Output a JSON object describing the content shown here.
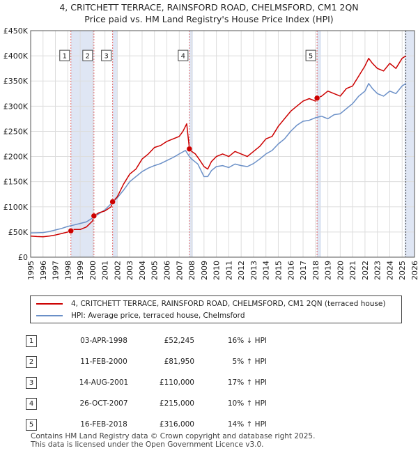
{
  "title": {
    "line1": "4, CRITCHETT TERRACE, RAINSFORD ROAD, CHELMSFORD, CM1 2QN",
    "line2": "Price paid vs. HM Land Registry's House Price Index (HPI)"
  },
  "colors": {
    "property": "#cc0000",
    "hpi": "#6a8fc7",
    "shade": "#dfe6f4",
    "marker_line": "#e06666",
    "grid": "#dddddd"
  },
  "chart_data": {
    "type": "line",
    "x_unit": "year",
    "xlim": [
      1995,
      2026
    ],
    "ylim": [
      0,
      450000
    ],
    "x_ticks": [
      "1995",
      "1996",
      "1997",
      "1998",
      "1999",
      "2000",
      "2001",
      "2002",
      "2003",
      "2004",
      "2005",
      "2006",
      "2007",
      "2008",
      "2009",
      "2010",
      "2011",
      "2012",
      "2013",
      "2014",
      "2015",
      "2016",
      "2017",
      "2018",
      "2019",
      "2020",
      "2021",
      "2022",
      "2023",
      "2024",
      "2025",
      "2026"
    ],
    "y_ticks": [
      {
        "value": 0,
        "label": "£0"
      },
      {
        "value": 50000,
        "label": "£50K"
      },
      {
        "value": 100000,
        "label": "£100K"
      },
      {
        "value": 150000,
        "label": "£150K"
      },
      {
        "value": 200000,
        "label": "£200K"
      },
      {
        "value": 250000,
        "label": "£250K"
      },
      {
        "value": 300000,
        "label": "£300K"
      },
      {
        "value": 350000,
        "label": "£350K"
      },
      {
        "value": 400000,
        "label": "£400K"
      },
      {
        "value": 450000,
        "label": "£450K"
      }
    ],
    "grid": true,
    "shaded_periods": [
      [
        1998.25,
        2000.11
      ],
      [
        2001.62,
        2002.0
      ],
      [
        2007.82,
        2008.1
      ],
      [
        2018.13,
        2018.45
      ],
      [
        2025.2,
        2026.0
      ]
    ],
    "series": [
      {
        "name": "4, CRITCHETT TERRACE, RAINSFORD ROAD, CHELMSFORD, CM1 2QN (terraced house)",
        "x": [
          1995,
          1995.5,
          1996,
          1996.5,
          1997,
          1997.5,
          1998,
          1998.25,
          1998.5,
          1999,
          1999.5,
          2000,
          2000.11,
          2000.5,
          2001,
          2001.5,
          2001.62,
          2002,
          2002.5,
          2003,
          2003.5,
          2004,
          2004.5,
          2005,
          2005.5,
          2006,
          2006.5,
          2007,
          2007.3,
          2007.6,
          2007.82,
          2008,
          2008.3,
          2008.6,
          2009,
          2009.3,
          2009.6,
          2010,
          2010.5,
          2011,
          2011.5,
          2012,
          2012.5,
          2013,
          2013.5,
          2014,
          2014.5,
          2015,
          2015.5,
          2016,
          2016.5,
          2017,
          2017.5,
          2018,
          2018.13,
          2018.5,
          2019,
          2019.5,
          2020,
          2020.5,
          2021,
          2021.5,
          2022,
          2022.3,
          2022.6,
          2023,
          2023.5,
          2024,
          2024.5,
          2025,
          2025.3
        ],
        "values": [
          42000,
          41000,
          40500,
          42000,
          44000,
          47000,
          50000,
          52245,
          55000,
          55000,
          60000,
          72000,
          81950,
          88000,
          92000,
          100000,
          110000,
          120000,
          145000,
          165000,
          175000,
          195000,
          205000,
          218000,
          222000,
          230000,
          235000,
          240000,
          250000,
          265000,
          215000,
          210000,
          205000,
          195000,
          180000,
          175000,
          190000,
          200000,
          205000,
          200000,
          210000,
          205000,
          200000,
          210000,
          220000,
          235000,
          240000,
          260000,
          275000,
          290000,
          300000,
          310000,
          315000,
          310000,
          316000,
          320000,
          330000,
          325000,
          320000,
          335000,
          340000,
          360000,
          380000,
          395000,
          385000,
          375000,
          370000,
          385000,
          375000,
          395000,
          400000
        ]
      },
      {
        "name": "HPI: Average price, terraced house, Chelmsford",
        "x": [
          1995,
          1995.5,
          1996,
          1996.5,
          1997,
          1997.5,
          1998,
          1998.5,
          1999,
          1999.5,
          2000,
          2000.5,
          2001,
          2001.5,
          2002,
          2002.5,
          2003,
          2003.5,
          2004,
          2004.5,
          2005,
          2005.5,
          2006,
          2006.5,
          2007,
          2007.5,
          2007.82,
          2008,
          2008.5,
          2009,
          2009.3,
          2009.6,
          2010,
          2010.5,
          2011,
          2011.5,
          2012,
          2012.5,
          2013,
          2013.5,
          2014,
          2014.5,
          2015,
          2015.5,
          2016,
          2016.5,
          2017,
          2017.5,
          2018,
          2018.5,
          2019,
          2019.5,
          2020,
          2020.5,
          2021,
          2021.5,
          2022,
          2022.3,
          2022.6,
          2023,
          2023.5,
          2024,
          2024.5,
          2025,
          2025.3
        ],
        "values": [
          48000,
          48500,
          49000,
          51000,
          54000,
          57000,
          61000,
          64000,
          67000,
          70000,
          78000,
          86000,
          94000,
          106000,
          118000,
          133000,
          150000,
          160000,
          170000,
          177000,
          182000,
          186000,
          192000,
          198000,
          205000,
          212000,
          200000,
          195000,
          185000,
          160000,
          160000,
          172000,
          180000,
          182000,
          178000,
          185000,
          182000,
          180000,
          186000,
          195000,
          205000,
          212000,
          225000,
          235000,
          250000,
          262000,
          270000,
          272000,
          277000,
          280000,
          275000,
          283000,
          285000,
          295000,
          305000,
          320000,
          330000,
          345000,
          335000,
          325000,
          320000,
          330000,
          325000,
          340000,
          345000
        ]
      }
    ],
    "sale_points": [
      {
        "label": "1",
        "x": 1998.25,
        "value": 52245
      },
      {
        "label": "2",
        "x": 2000.11,
        "value": 81950
      },
      {
        "label": "3",
        "x": 2001.62,
        "value": 110000
      },
      {
        "label": "4",
        "x": 2007.82,
        "value": 215000
      },
      {
        "label": "5",
        "x": 2018.13,
        "value": 316000
      }
    ]
  },
  "legend": [
    {
      "label": "4, CRITCHETT TERRACE, RAINSFORD ROAD, CHELMSFORD, CM1 2QN (terraced house)"
    },
    {
      "label": "HPI: Average price, terraced house, Chelmsford"
    }
  ],
  "sales_table": [
    {
      "num": "1",
      "date": "03-APR-1998",
      "price": "£52,245",
      "hpi": "16% ↓ HPI"
    },
    {
      "num": "2",
      "date": "11-FEB-2000",
      "price": "£81,950",
      "hpi": "5% ↑ HPI"
    },
    {
      "num": "3",
      "date": "14-AUG-2001",
      "price": "£110,000",
      "hpi": "17% ↑ HPI"
    },
    {
      "num": "4",
      "date": "26-OCT-2007",
      "price": "£215,000",
      "hpi": "10% ↑ HPI"
    },
    {
      "num": "5",
      "date": "16-FEB-2018",
      "price": "£316,000",
      "hpi": "14% ↑ HPI"
    }
  ],
  "footer": {
    "line1": "Contains HM Land Registry data © Crown copyright and database right 2025.",
    "line2": "This data is licensed under the Open Government Licence v3.0."
  }
}
